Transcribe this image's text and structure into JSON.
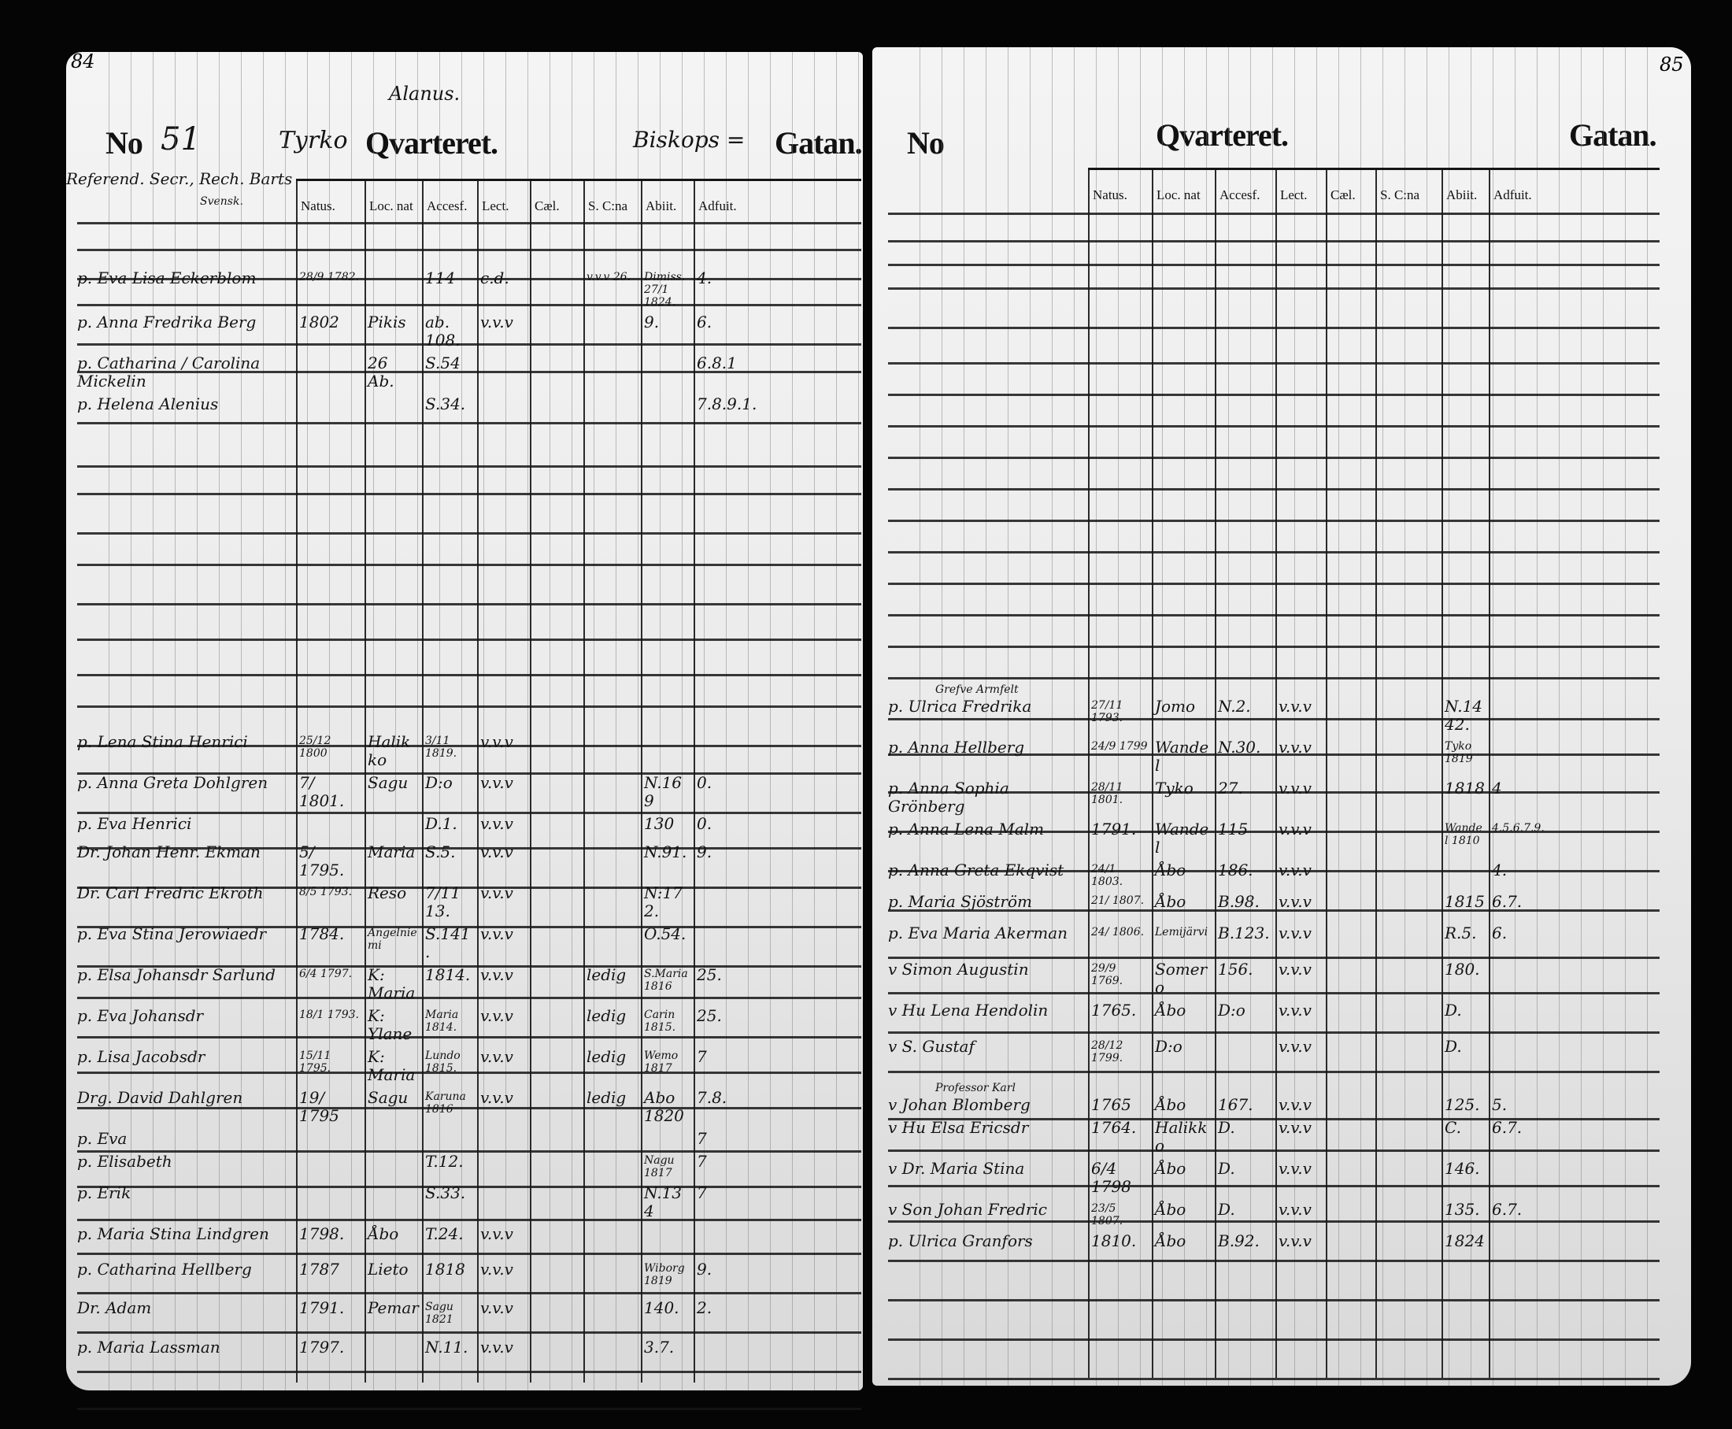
{
  "left_page": {
    "page_number": "84",
    "number_label": "No",
    "house_number": "51",
    "quarter_name": "Tyrko",
    "quarter_label": "Qvarteret.",
    "street_name": "Biskops =",
    "street_label": "Gatan.",
    "owner_note": "Alanus.",
    "household_head": "Referend. Secr., Rech. Barts",
    "household_head_sub": "Svensk.",
    "columns": [
      "Natus.",
      "Loc. nat",
      "Accesf.",
      "Lect.",
      "Cæl.",
      "S. C:na",
      "Abiit.",
      "Adfuit."
    ],
    "entries": [
      {
        "name": "p. Eva Lisa Eckerblom",
        "natus": "28/9 1782.",
        "loc": "",
        "accesf": "114",
        "lect": "c.d.",
        "scna": "v.v.v 26.",
        "abiit": "Dimiss. 27/1 1824.",
        "adfuit": "4."
      },
      {
        "name": "p. Anna Fredrika Berg",
        "natus": "1802",
        "loc": "Pikis",
        "accesf": "ab. 108.",
        "lect": "v.v.v",
        "scna": "",
        "abiit": "9.",
        "adfuit": "6."
      },
      {
        "name": "p. Catharina / Carolina Mickelin",
        "natus": "",
        "loc": "26 Ab.",
        "accesf": "S.54",
        "lect": "",
        "scna": "",
        "abiit": "",
        "adfuit": "6.8.1"
      },
      {
        "name": "p. Helena Alenius",
        "natus": "",
        "loc": "",
        "accesf": "S.34.",
        "lect": "",
        "scna": "",
        "abiit": "",
        "adfuit": "7.8.9.1."
      },
      {
        "name": "p. Lena Stina Henrici",
        "natus": "25/12 1800",
        "loc": "Halikko",
        "accesf": "3/11 1819.",
        "lect": "v.v.v",
        "scna": "",
        "abiit": "",
        "adfuit": ""
      },
      {
        "name": "p. Anna Greta Dohlgren",
        "natus": "7/ 1801.",
        "loc": "Sagu",
        "accesf": "D:o",
        "lect": "v.v.v",
        "scna": "",
        "abiit": "N.169",
        "adfuit": "0."
      },
      {
        "name": "p. Eva Henrici",
        "natus": "",
        "loc": "",
        "accesf": "D.1.",
        "lect": "v.v.v",
        "scna": "",
        "abiit": "130",
        "adfuit": "0."
      },
      {
        "name": "Dr. Johan Henr. Ekman",
        "natus": "5/ 1795.",
        "loc": "Maria",
        "accesf": "S.5.",
        "lect": "v.v.v",
        "scna": "",
        "abiit": "N.91.",
        "adfuit": "9."
      },
      {
        "name": "Dr. Carl Fredric Ekroth",
        "natus": "8/5 1793.",
        "loc": "Reso",
        "accesf": "7/11 13.",
        "lect": "v.v.v",
        "scna": "",
        "abiit": "N:172.",
        "adfuit": ""
      },
      {
        "name": "p. Eva Stina Jerowiaedr",
        "natus": "1784.",
        "loc": "Angelniemi",
        "accesf": "S.141.",
        "lect": "v.v.v",
        "scna": "",
        "abiit": "O.54.",
        "adfuit": ""
      },
      {
        "name": "p. Elsa Johansdr Sarlund",
        "natus": "6/4 1797.",
        "loc": "K: Maria",
        "accesf": "1814.",
        "lect": "v.v.v",
        "scna": "ledig",
        "abiit": "S.Maria 1816",
        "adfuit": "25."
      },
      {
        "name": "p. Eva Johansdr",
        "natus": "18/1 1793.",
        "loc": "K: Ylane",
        "accesf": "Maria 1814.",
        "lect": "v.v.v",
        "scna": "ledig",
        "abiit": "Carin 1815.",
        "adfuit": "25."
      },
      {
        "name": "p. Lisa Jacobsdr",
        "natus": "15/11 1795.",
        "loc": "K: Maria",
        "accesf": "Lundo 1815.",
        "lect": "v.v.v",
        "scna": "ledig",
        "abiit": "Wemo 1817",
        "adfuit": "7"
      },
      {
        "name": "Drg. David Dahlgren",
        "natus": "19/ 1795",
        "loc": "Sagu",
        "accesf": "Karuna 1816",
        "lect": "v.v.v",
        "scna": "ledig",
        "abiit": "Abo 1820",
        "adfuit": "7.8."
      },
      {
        "name": "p. Eva",
        "natus": "",
        "loc": "",
        "accesf": "",
        "lect": "",
        "scna": "",
        "abiit": "",
        "adfuit": "7"
      },
      {
        "name": "p. Elisabeth",
        "natus": "",
        "loc": "",
        "accesf": "T.12.",
        "lect": "",
        "scna": "",
        "abiit": "Nagu 1817",
        "adfuit": "7"
      },
      {
        "name": "p. Erik",
        "natus": "",
        "loc": "",
        "accesf": "S.33.",
        "lect": "",
        "scna": "",
        "abiit": "N.134",
        "adfuit": "7"
      },
      {
        "name": "p. Maria Stina Lindgren",
        "natus": "1798.",
        "loc": "Åbo",
        "accesf": "T.24.",
        "lect": "v.v.v",
        "scna": "",
        "abiit": "",
        "adfuit": ""
      },
      {
        "name": "p. Catharina Hellberg",
        "natus": "1787",
        "loc": "Lieto",
        "accesf": "1818",
        "lect": "v.v.v",
        "scna": "",
        "abiit": "Wiborg 1819",
        "adfuit": "9."
      },
      {
        "name": "Dr. Adam",
        "natus": "1791.",
        "loc": "Pemar",
        "accesf": "Sagu 1821",
        "lect": "v.v.v",
        "scna": "",
        "abiit": "140.",
        "adfuit": "2."
      },
      {
        "name": "p. Maria Lassman",
        "natus": "1797.",
        "loc": "",
        "accesf": "N.11.",
        "lect": "v.v.v",
        "scna": "",
        "abiit": "3.7.",
        "adfuit": ""
      }
    ]
  },
  "right_page": {
    "page_number": "85",
    "number_label": "No",
    "quarter_label": "Qvarteret.",
    "street_label": "Gatan.",
    "columns": [
      "Natus.",
      "Loc. nat",
      "Accesf.",
      "Lect.",
      "Cæl.",
      "S. C:na",
      "Abiit.",
      "Adfuit."
    ],
    "entries": [
      {
        "note": "Grefve Armfelt",
        "name": "p. Ulrica Fredrika",
        "natus": "27/11 1793.",
        "loc": "Jomo",
        "accesf": "N.2.",
        "lect": "v.v.v",
        "abiit": "N.1442.",
        "adfuit": ""
      },
      {
        "note": "",
        "name": "p. Anna Hellberg",
        "natus": "24/9 1799",
        "loc": "Wandel",
        "accesf": "N.30.",
        "lect": "v.v.v",
        "abiit": "Tyko 1819",
        "adfuit": ""
      },
      {
        "note": "",
        "name": "p. Anna Sophia Grönberg",
        "natus": "28/11 1801.",
        "loc": "Tyko",
        "accesf": "27.",
        "lect": "v.v.v",
        "abiit": "1818",
        "adfuit": "4"
      },
      {
        "note": "",
        "name": "p. Anna Lena Malm",
        "natus": "1791.",
        "loc": "Wandel",
        "accesf": "115",
        "lect": "v.v.v",
        "abiit": "Wandel 1810",
        "adfuit": "4.5.6.7.9."
      },
      {
        "note": "",
        "name": "p. Anna Greta Ekqvist",
        "natus": "24/1 1803.",
        "loc": "Åbo",
        "accesf": "186.",
        "lect": "v.v.v",
        "abiit": "",
        "adfuit": "4."
      },
      {
        "note": "",
        "name": "p. Maria Sjöström",
        "natus": "21/ 1807.",
        "loc": "Åbo",
        "accesf": "B.98.",
        "lect": "v.v.v",
        "abiit": "1815",
        "adfuit": "6.7."
      },
      {
        "note": "",
        "name": "p. Eva Maria Akerman",
        "natus": "24/ 1806.",
        "loc": "Lemijärvi",
        "accesf": "B.123.",
        "lect": "v.v.v",
        "abiit": "R.5.",
        "adfuit": "6."
      },
      {
        "note": "",
        "name": "v Simon Augustin",
        "natus": "29/9 1769.",
        "loc": "Somero",
        "accesf": "156.",
        "lect": "v.v.v",
        "abiit": "180.",
        "adfuit": ""
      },
      {
        "note": "",
        "name": "v Hu Lena Hendolin",
        "natus": "1765.",
        "loc": "Åbo",
        "accesf": "D:o",
        "lect": "v.v.v",
        "abiit": "D.",
        "adfuit": ""
      },
      {
        "note": "",
        "name": "v S. Gustaf",
        "natus": "28/12 1799.",
        "loc": "D:o",
        "accesf": "",
        "lect": "v.v.v",
        "abiit": "D.",
        "adfuit": ""
      },
      {
        "note": "Professor Karl",
        "name": "v Johan Blomberg",
        "natus": "1765",
        "loc": "Åbo",
        "accesf": "167.",
        "lect": "v.v.v",
        "abiit": "125.",
        "adfuit": "5."
      },
      {
        "note": "",
        "name": "v Hu Elsa Ericsdr",
        "natus": "1764.",
        "loc": "Halikko",
        "accesf": "D.",
        "lect": "v.v.v",
        "abiit": "C.",
        "adfuit": "6.7."
      },
      {
        "note": "",
        "name": "v Dr. Maria Stina",
        "natus": "6/4 1798",
        "loc": "Åbo",
        "accesf": "D.",
        "lect": "v.v.v",
        "abiit": "146.",
        "adfuit": ""
      },
      {
        "note": "",
        "name": "v Son Johan Fredric",
        "natus": "23/5 1807.",
        "loc": "Åbo",
        "accesf": "D.",
        "lect": "v.v.v",
        "abiit": "135.",
        "adfuit": "6.7."
      },
      {
        "note": "",
        "name": "p. Ulrica Granfors",
        "natus": "1810.",
        "loc": "Åbo",
        "accesf": "B.92.",
        "lect": "v.v.v",
        "abiit": "1824",
        "adfuit": ""
      }
    ]
  },
  "colors": {
    "background": "#000000",
    "paper": "#ececec",
    "ink": "#141414"
  }
}
